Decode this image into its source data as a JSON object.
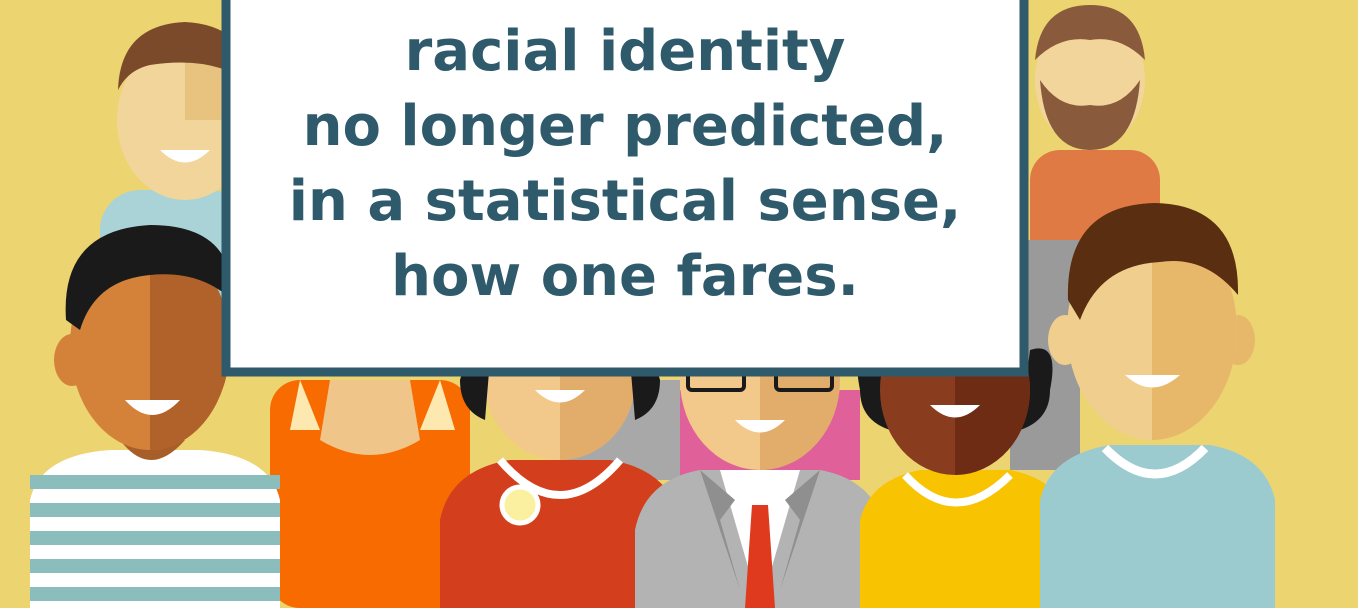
{
  "caption": {
    "lines": [
      "racial identity",
      "no longer predicted,",
      "in a statistical sense,",
      "how one fares."
    ]
  }
}
